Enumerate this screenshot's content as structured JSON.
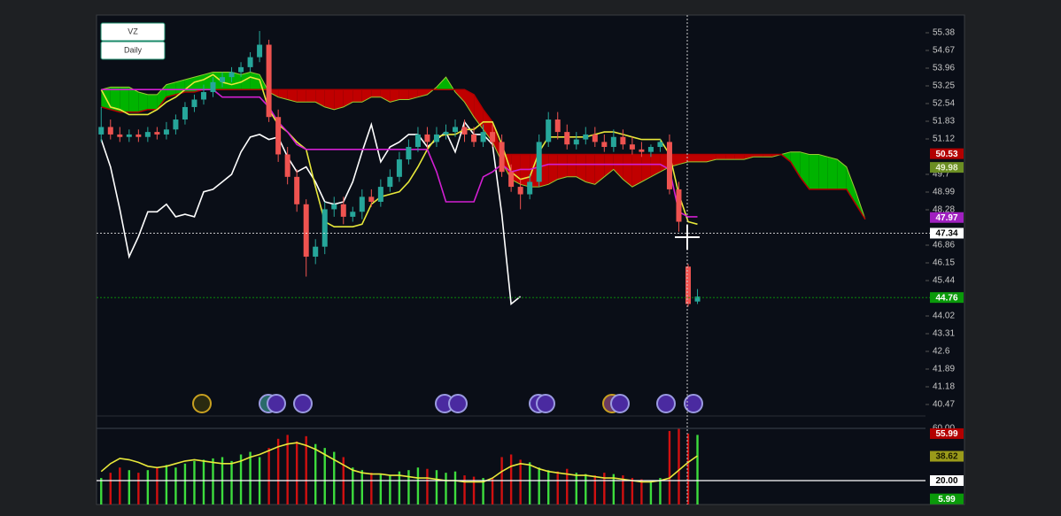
{
  "chart_data": [
    {
      "type": "candlestick",
      "symbol": "VZ",
      "interval": "Daily",
      "up_color": "#26a69a",
      "down_color": "#ef5350",
      "open": [
        51.3,
        51.6,
        51.3,
        51.2,
        51.3,
        51.2,
        51.4,
        51.3,
        51.5,
        51.9,
        52.4,
        52.7,
        53.0,
        53.4,
        53.6,
        53.8,
        54.0,
        54.4,
        54.9,
        52.0,
        50.5,
        49.6,
        48.5,
        46.4,
        46.8,
        48.3,
        48.5,
        48.0,
        48.2,
        48.8,
        48.6,
        49.2,
        49.6,
        50.3,
        50.8,
        51.3,
        51.0,
        51.3,
        51.4,
        51.6,
        51.3,
        51.0,
        51.4,
        51.0,
        49.8,
        49.2,
        48.9,
        49.4,
        51.0,
        51.9,
        51.4,
        50.9,
        51.1,
        51.3,
        51.0,
        50.8,
        51.2,
        50.9,
        50.7,
        50.6,
        50.8,
        51.0,
        49.1,
        46.0,
        44.6
      ],
      "high": [
        52.4,
        51.9,
        51.6,
        51.5,
        51.5,
        51.6,
        51.6,
        51.8,
        52.1,
        52.6,
        52.9,
        53.3,
        53.6,
        53.8,
        54.0,
        54.2,
        54.6,
        55.45,
        55.1,
        52.3,
        50.8,
        49.9,
        48.7,
        47.1,
        48.6,
        48.8,
        48.8,
        48.4,
        49.1,
        49.1,
        49.5,
        49.9,
        50.6,
        51.1,
        51.6,
        51.6,
        51.6,
        51.7,
        51.9,
        51.9,
        51.6,
        51.7,
        51.7,
        51.3,
        50.1,
        49.5,
        49.7,
        51.3,
        52.2,
        52.2,
        51.7,
        51.4,
        51.6,
        51.6,
        51.3,
        51.5,
        51.5,
        51.2,
        51.0,
        50.9,
        51.1,
        51.3,
        49.4,
        46.1,
        45.1
      ],
      "low": [
        51.0,
        51.1,
        51.0,
        51.0,
        51.0,
        51.0,
        51.1,
        51.1,
        51.3,
        51.7,
        52.2,
        52.5,
        52.8,
        53.2,
        53.4,
        53.6,
        53.8,
        54.2,
        51.8,
        50.2,
        49.3,
        48.2,
        45.6,
        46.1,
        46.5,
        48.0,
        47.7,
        47.8,
        47.9,
        48.4,
        48.4,
        49.0,
        49.4,
        50.1,
        50.6,
        50.7,
        50.8,
        51.1,
        51.2,
        51.0,
        50.8,
        50.8,
        50.8,
        49.6,
        49.0,
        48.3,
        48.7,
        49.2,
        50.8,
        51.1,
        50.7,
        50.7,
        50.9,
        50.8,
        50.6,
        50.6,
        50.7,
        50.5,
        50.4,
        50.4,
        50.6,
        48.9,
        47.4,
        44.4,
        44.5
      ],
      "close": [
        51.6,
        51.3,
        51.2,
        51.3,
        51.2,
        51.4,
        51.3,
        51.5,
        51.9,
        52.4,
        52.7,
        53.0,
        53.4,
        53.6,
        53.8,
        54.0,
        54.4,
        54.9,
        52.0,
        50.5,
        49.6,
        48.5,
        46.4,
        46.8,
        48.3,
        48.5,
        48.0,
        48.2,
        48.8,
        48.6,
        49.2,
        49.6,
        50.3,
        50.8,
        51.3,
        51.0,
        51.3,
        51.4,
        51.6,
        51.3,
        51.0,
        51.4,
        51.0,
        49.8,
        49.2,
        48.9,
        49.4,
        51.0,
        51.9,
        51.4,
        50.9,
        51.1,
        51.3,
        51.0,
        50.8,
        51.2,
        50.9,
        50.7,
        50.6,
        50.8,
        51.0,
        49.1,
        47.8,
        44.5,
        44.8
      ],
      "lines": [
        {
          "color": "#ffffff",
          "values": [
            51.1,
            50.0,
            48.3,
            46.4,
            47.2,
            48.2,
            48.2,
            48.5,
            48.0,
            48.1,
            48.0,
            49.0,
            49.1,
            49.4,
            49.7,
            50.6,
            51.2,
            51.3,
            51.1,
            51.2,
            50.4,
            49.8,
            50.0,
            49.4,
            48.6,
            48.5,
            48.6,
            49.4,
            50.6,
            51.7,
            50.2,
            50.8,
            51.0,
            51.3,
            51.3,
            50.8,
            51.1,
            51.4,
            50.6,
            51.8,
            51.3,
            51.3,
            50.9,
            48.1,
            44.5,
            44.8
          ]
        },
        {
          "color": "#e8e83a",
          "values": [
            53.1,
            52.4,
            52.3,
            52.1,
            52.1,
            52.1,
            52.3,
            52.6,
            52.8,
            53.1,
            53.4,
            53.5,
            53.7,
            53.4,
            53.3,
            53.4,
            53.6,
            53.5,
            52.3,
            51.7,
            51.4,
            51.0,
            50.7,
            49.2,
            47.8,
            47.6,
            47.6,
            47.6,
            47.7,
            48.5,
            48.8,
            48.9,
            49.0,
            49.4,
            50.0,
            50.7,
            51.2,
            51.3,
            51.3,
            51.5,
            51.5,
            51.8,
            51.8,
            50.9,
            49.8,
            49.5,
            49.6,
            50.6,
            51.2,
            51.2,
            51.2,
            51.2,
            51.2,
            51.3,
            51.4,
            51.4,
            51.3,
            51.2,
            51.1,
            51.1,
            51.1,
            50.5,
            48.9,
            47.8,
            47.7
          ]
        },
        {
          "color": "#d21fd2",
          "values": [
            53.1,
            53.1,
            53.1,
            53.1,
            53.1,
            53.1,
            53.1,
            53.1,
            53.1,
            53.1,
            53.1,
            53.1,
            53.1,
            52.8,
            52.8,
            52.8,
            52.8,
            52.8,
            52.4,
            51.8,
            51.4,
            50.9,
            50.7,
            50.7,
            50.7,
            50.7,
            50.7,
            50.7,
            50.7,
            50.7,
            50.7,
            50.7,
            50.7,
            50.7,
            50.7,
            50.7,
            49.8,
            48.6,
            48.6,
            48.6,
            48.6,
            49.6,
            49.8,
            50.1,
            49.8,
            49.9,
            49.9,
            50.0,
            50.1,
            50.1,
            50.1,
            50.1,
            50.1,
            50.1,
            50.1,
            50.1,
            50.1,
            50.1,
            50.1,
            50.1,
            50.1,
            49.9,
            48.2,
            48.0,
            48.0
          ]
        }
      ],
      "cloud": {
        "bull_color": "#00b300",
        "bear_color": "#c00000",
        "span_a": {
          "color": "#9acd32",
          "values": [
            53.1,
            53.2,
            53.2,
            53.2,
            53.0,
            52.9,
            52.9,
            53.3,
            53.4,
            53.5,
            53.6,
            53.7,
            53.8,
            53.8,
            53.8,
            53.7,
            53.8,
            53.7,
            53.0,
            52.8,
            52.7,
            52.6,
            52.6,
            52.6,
            52.4,
            52.3,
            52.4,
            52.6,
            52.6,
            52.8,
            52.8,
            52.6,
            52.7,
            52.7,
            52.8,
            52.9,
            53.2,
            53.6,
            53.0,
            52.6,
            52.0,
            51.5,
            51.0,
            50.2,
            49.5,
            49.3,
            49.2,
            49.2,
            49.3,
            49.5,
            49.6,
            49.6,
            49.4,
            49.3,
            49.6,
            49.9,
            49.5,
            49.2,
            49.4,
            49.6,
            49.8,
            50.0,
            50.1,
            50.2,
            50.2,
            50.2,
            50.3,
            50.3,
            50.3,
            50.3,
            50.4,
            50.4,
            50.4,
            50.5,
            50.6,
            50.6,
            50.5,
            50.5,
            50.4,
            50.3,
            50.0,
            49.0,
            47.9
          ]
        },
        "span_b": {
          "color": "#b00000",
          "values": [
            52.4,
            52.3,
            52.2,
            52.2,
            52.2,
            52.3,
            52.3,
            52.8,
            52.9,
            53.0,
            53.0,
            53.1,
            53.1,
            53.1,
            53.1,
            53.1,
            53.1,
            53.1,
            53.1,
            53.1,
            53.1,
            53.1,
            53.1,
            53.1,
            53.1,
            53.1,
            53.1,
            53.1,
            53.1,
            53.1,
            53.1,
            53.1,
            53.1,
            53.1,
            53.1,
            53.1,
            53.1,
            53.1,
            53.1,
            53.1,
            52.9,
            52.3,
            51.8,
            50.5,
            50.5,
            50.5,
            50.5,
            50.5,
            50.5,
            50.5,
            50.5,
            50.5,
            50.5,
            50.5,
            50.5,
            50.5,
            50.5,
            50.5,
            50.5,
            50.5,
            50.5,
            50.5,
            50.5,
            50.5,
            50.5,
            50.5,
            50.5,
            50.5,
            50.5,
            50.5,
            50.5,
            50.5,
            50.5,
            50.5,
            50.2,
            49.6,
            49.1,
            49.1,
            49.1,
            49.1,
            49.1,
            48.5,
            47.9
          ]
        }
      },
      "xlim": [
        -0.5,
        88
      ],
      "ylim": [
        40.08,
        56.09
      ],
      "yticks": [
        55.38,
        54.67,
        53.96,
        53.25,
        52.54,
        51.83,
        51.12,
        49.7,
        48.99,
        48.28,
        46.86,
        46.15,
        45.44,
        44.02,
        43.31,
        42.6,
        41.89,
        41.18,
        40.47
      ],
      "price_tags": [
        {
          "value": 50.53,
          "color": "#b30000",
          "text_color": "#ffffff"
        },
        {
          "value": 49.98,
          "color": "#6b8e23",
          "text_color": "#e8f0d0"
        },
        {
          "value": 47.97,
          "color": "#a020c0",
          "text_color": "#ffffff"
        },
        {
          "value": 47.34,
          "color": "#ffffff",
          "text_color": "#000000",
          "dashed_line": true
        },
        {
          "value": 44.76,
          "color": "#0a9a0a",
          "text_color": "#ffffff",
          "dashed_line": true
        }
      ]
    },
    {
      "type": "bar",
      "candle_source": 0,
      "values": [
        22,
        26,
        30,
        28,
        26,
        28,
        30,
        32,
        30,
        33,
        35,
        36,
        37,
        38,
        35,
        40,
        42,
        38,
        45,
        52,
        55,
        50,
        54,
        48,
        45,
        42,
        38,
        30,
        28,
        26,
        25,
        24,
        27,
        28,
        30,
        29,
        28,
        26,
        27,
        24,
        23,
        22,
        22,
        38,
        40,
        36,
        34,
        30,
        28,
        27,
        29,
        26,
        25,
        24,
        26,
        25,
        24,
        22,
        21,
        20,
        22,
        58,
        60,
        56,
        55
      ],
      "up_color": "#3ddc3d",
      "down_color": "#d01010",
      "signal": {
        "color": "#e8e83a",
        "values": [
          27,
          33,
          37,
          36,
          34,
          31,
          30,
          31,
          33,
          35,
          36,
          35,
          34,
          33,
          33,
          35,
          38,
          40,
          43,
          46,
          48,
          49,
          47,
          44,
          40,
          36,
          32,
          28,
          26,
          25,
          25,
          24,
          24,
          23,
          22,
          22,
          21,
          20,
          20,
          19,
          19,
          19,
          22,
          27,
          31,
          33,
          32,
          29,
          27,
          26,
          25,
          24,
          24,
          23,
          22,
          22,
          21,
          20,
          19,
          19,
          20,
          22,
          28,
          34,
          39
        ]
      },
      "xlim": [
        -0.5,
        88
      ],
      "ylim": [
        1.7,
        60
      ],
      "yticks": [
        {
          "value": 60,
          "label": "60.00"
        },
        {
          "value": 20,
          "label": "20.00"
        }
      ],
      "price_tags": [
        {
          "value": 55.99,
          "color": "#b30000",
          "text_color": "#ffffff"
        },
        {
          "value": 38.62,
          "color": "#9a9a1a",
          "text_color": "#1a1a00"
        },
        {
          "value": 20,
          "label": "20.00",
          "color": "#ffffff",
          "text_color": "#000000"
        },
        {
          "value": 5.99,
          "color": "#0a9a0a",
          "text_color": "#ffffff"
        }
      ]
    }
  ]
}
